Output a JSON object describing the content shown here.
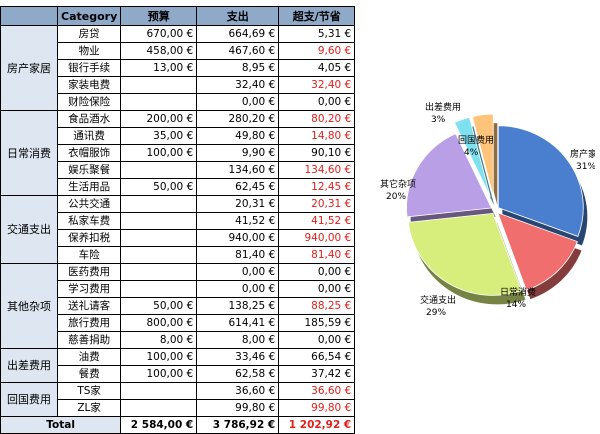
{
  "table": {
    "headers": [
      "Category",
      "预算",
      "支出",
      "超支/节省"
    ],
    "groups": [
      {
        "name": "房产家居",
        "rows": [
          {
            "item": "房贷",
            "budget": "670,00 €",
            "spent": "664,69 €",
            "diff": "5,31 €",
            "red": false
          },
          {
            "item": "物业",
            "budget": "458,00 €",
            "spent": "467,60 €",
            "diff": "9,60 €",
            "red": true
          },
          {
            "item": "银行手续",
            "budget": "13,00 €",
            "spent": "8,95 €",
            "diff": "4,05 €",
            "red": false
          },
          {
            "item": "家装电费",
            "budget": "",
            "spent": "32,40 €",
            "diff": "32,40 €",
            "red": true
          },
          {
            "item": "财险保险",
            "budget": "",
            "spent": "0,00 €",
            "diff": "0,00 €",
            "red": false
          }
        ]
      },
      {
        "name": "日常消费",
        "rows": [
          {
            "item": "食品酒水",
            "budget": "200,00 €",
            "spent": "280,20 €",
            "diff": "80,20 €",
            "red": true
          },
          {
            "item": "通讯费",
            "budget": "35,00 €",
            "spent": "49,80 €",
            "diff": "14,80 €",
            "red": true
          },
          {
            "item": "衣帽服饰",
            "budget": "100,00 €",
            "spent": "9,90 €",
            "diff": "90,10 €",
            "red": false
          },
          {
            "item": "娱乐聚餐",
            "budget": "",
            "spent": "134,60 €",
            "diff": "134,60 €",
            "red": true
          },
          {
            "item": "生活用品",
            "budget": "50,00 €",
            "spent": "62,45 €",
            "diff": "12,45 €",
            "red": true
          }
        ]
      },
      {
        "name": "交通支出",
        "rows": [
          {
            "item": "公共交通",
            "budget": "",
            "spent": "20,31 €",
            "diff": "20,31 €",
            "red": true
          },
          {
            "item": "私家车费",
            "budget": "",
            "spent": "41,52 €",
            "diff": "41,52 €",
            "red": true
          },
          {
            "item": "保养扣税",
            "budget": "",
            "spent": "940,00 €",
            "diff": "940,00 €",
            "red": true
          },
          {
            "item": "车险",
            "budget": "",
            "spent": "81,40 €",
            "diff": "81,40 €",
            "red": true
          }
        ]
      },
      {
        "name": "其他杂项",
        "rows": [
          {
            "item": "医药费用",
            "budget": "",
            "spent": "0,00 €",
            "diff": "0,00 €",
            "red": false
          },
          {
            "item": "学习费用",
            "budget": "",
            "spent": "0,00 €",
            "diff": "0,00 €",
            "red": false
          },
          {
            "item": "送礼请客",
            "budget": "50,00 €",
            "spent": "138,25 €",
            "diff": "88,25 €",
            "red": true
          },
          {
            "item": "旅行费用",
            "budget": "800,00 €",
            "spent": "614,41 €",
            "diff": "185,59 €",
            "red": false
          },
          {
            "item": "慈善捐助",
            "budget": "8,00 €",
            "spent": "8,00 €",
            "diff": "0,00 €",
            "red": false
          }
        ]
      },
      {
        "name": "出差费用",
        "rows": [
          {
            "item": "油费",
            "budget": "100,00 €",
            "spent": "33,46 €",
            "diff": "66,54 €",
            "red": false
          },
          {
            "item": "餐费",
            "budget": "100,00 €",
            "spent": "62,58 €",
            "diff": "37,42 €",
            "red": false
          }
        ]
      },
      {
        "name": "回国费用",
        "rows": [
          {
            "item": "TS家",
            "budget": "",
            "spent": "36,60 €",
            "diff": "36,60 €",
            "red": true
          },
          {
            "item": "ZL家",
            "budget": "",
            "spent": "99,80 €",
            "diff": "99,80 €",
            "red": true
          }
        ]
      }
    ],
    "total": {
      "label": "Total",
      "budget": "2 584,00 €",
      "spent": "3 786,92 €",
      "diff": "1 202,92 €",
      "red": true
    }
  },
  "chart_data": {
    "type": "pie",
    "slices": [
      {
        "name": "房产家居",
        "pct": "31%",
        "value": 31,
        "color": "#4a7fd0",
        "exploded": false
      },
      {
        "name": "日常消费",
        "pct": "14%",
        "value": 14,
        "color": "#f06e6e",
        "exploded": false
      },
      {
        "name": "交通支出",
        "pct": "29%",
        "value": 29,
        "color": "#d8ee7c",
        "exploded": false
      },
      {
        "name": "其它杂项",
        "pct": "20%",
        "value": 20,
        "color": "#b9a0e6",
        "exploded": false
      },
      {
        "name": "出差费用",
        "pct": "3%",
        "value": 3,
        "color": "#7fe0f0",
        "exploded": true
      },
      {
        "name": "回国费用",
        "pct": "4%",
        "value": 4,
        "color": "#ffc47a",
        "exploded": true
      }
    ]
  }
}
